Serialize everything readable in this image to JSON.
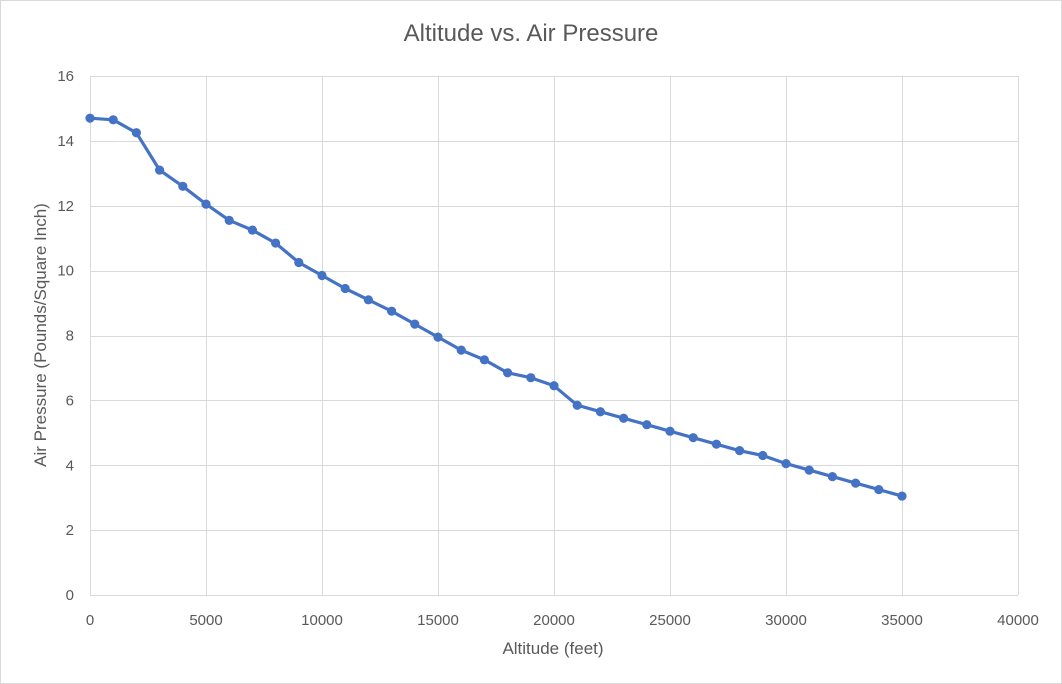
{
  "chart_data": {
    "type": "line",
    "title": "Altitude vs. Air Pressure",
    "xlabel": "Altitude (feet)",
    "ylabel": "Air Pressure (Pounds/Square Inch)",
    "xlim": [
      0,
      40000
    ],
    "ylim": [
      0,
      16
    ],
    "xticks": [
      0,
      5000,
      10000,
      15000,
      20000,
      25000,
      30000,
      35000,
      40000
    ],
    "yticks": [
      0,
      2,
      4,
      6,
      8,
      10,
      12,
      14,
      16
    ],
    "grid": true,
    "legend": "none",
    "series_color": "#4472c4",
    "x": [
      0,
      1000,
      2000,
      3000,
      4000,
      5000,
      6000,
      7000,
      8000,
      9000,
      10000,
      11000,
      12000,
      13000,
      14000,
      15000,
      16000,
      17000,
      18000,
      19000,
      20000,
      21000,
      22000,
      23000,
      24000,
      25000,
      26000,
      27000,
      28000,
      29000,
      30000,
      31000,
      32000,
      33000,
      34000,
      35000
    ],
    "y": [
      14.7,
      14.65,
      14.25,
      13.1,
      12.6,
      12.05,
      11.55,
      11.25,
      10.85,
      10.25,
      9.85,
      9.45,
      9.1,
      8.75,
      8.35,
      7.95,
      7.55,
      7.25,
      6.85,
      6.7,
      6.45,
      5.85,
      5.65,
      5.45,
      5.25,
      5.05,
      4.85,
      4.65,
      4.45,
      4.3,
      4.05,
      3.85,
      3.65,
      3.45,
      3.25,
      3.05
    ]
  }
}
